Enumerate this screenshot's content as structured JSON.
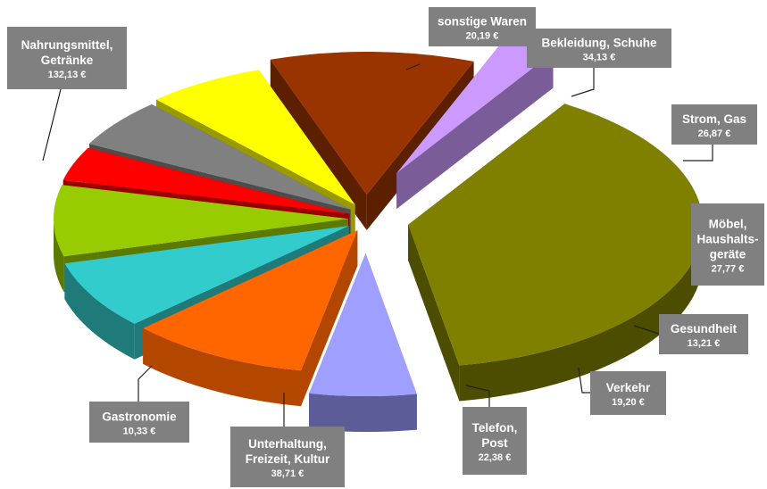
{
  "chart_data": {
    "type": "pie",
    "style": "exploded 3D pie",
    "title": "",
    "unit": "€",
    "slices": [
      {
        "name": "sonstige Waren",
        "lines": [
          "sonstige Waren"
        ],
        "label": "20,19 €",
        "value": 20.19,
        "color": "#9f9fff",
        "side": "#5c5c99"
      },
      {
        "name": "Bekleidung, Schuhe",
        "lines": [
          "Bekleidung, Schuhe"
        ],
        "label": "34,13 €",
        "value": 34.13,
        "color": "#ff6600",
        "side": "#b34700"
      },
      {
        "name": "Strom, Gas",
        "lines": [
          "Strom, Gas"
        ],
        "label": "26,87 €",
        "value": 26.87,
        "color": "#33cccc",
        "side": "#1f7a7a"
      },
      {
        "name": "Möbel, Haushaltsgeräte",
        "lines": [
          "Möbel,",
          "Haushalts-",
          "geräte"
        ],
        "label": "27,77 €",
        "value": 27.77,
        "color": "#99cc00",
        "side": "#5c7a00"
      },
      {
        "name": "Gesundheit",
        "lines": [
          "Gesundheit"
        ],
        "label": "13,21 €",
        "value": 13.21,
        "color": "#ff0000",
        "side": "#990000"
      },
      {
        "name": "Verkehr",
        "lines": [
          "Verkehr"
        ],
        "label": "19,20 €",
        "value": 19.2,
        "color": "#808080",
        "side": "#4d4d4d"
      },
      {
        "name": "Telefon, Post",
        "lines": [
          "Telefon,",
          "Post"
        ],
        "label": "22,38 €",
        "value": 22.38,
        "color": "#ffff00",
        "side": "#999900"
      },
      {
        "name": "Unterhaltung, Freizeit, Kultur",
        "lines": [
          "Unterhaltung,",
          "Freizeit, Kultur"
        ],
        "label": "38,71 €",
        "value": 38.71,
        "color": "#993300",
        "side": "#5c1f00"
      },
      {
        "name": "Gastronomie",
        "lines": [
          "Gastronomie"
        ],
        "label": "10,33 €",
        "value": 10.33,
        "color": "#cc99ff",
        "side": "#7a5c99"
      },
      {
        "name": "Nahrungsmittel, Getränke",
        "lines": [
          "Nahrungsmittel,",
          "Getränke"
        ],
        "label": "132,13 €",
        "value": 132.13,
        "color": "#808000",
        "side": "#4d4d00"
      }
    ]
  }
}
